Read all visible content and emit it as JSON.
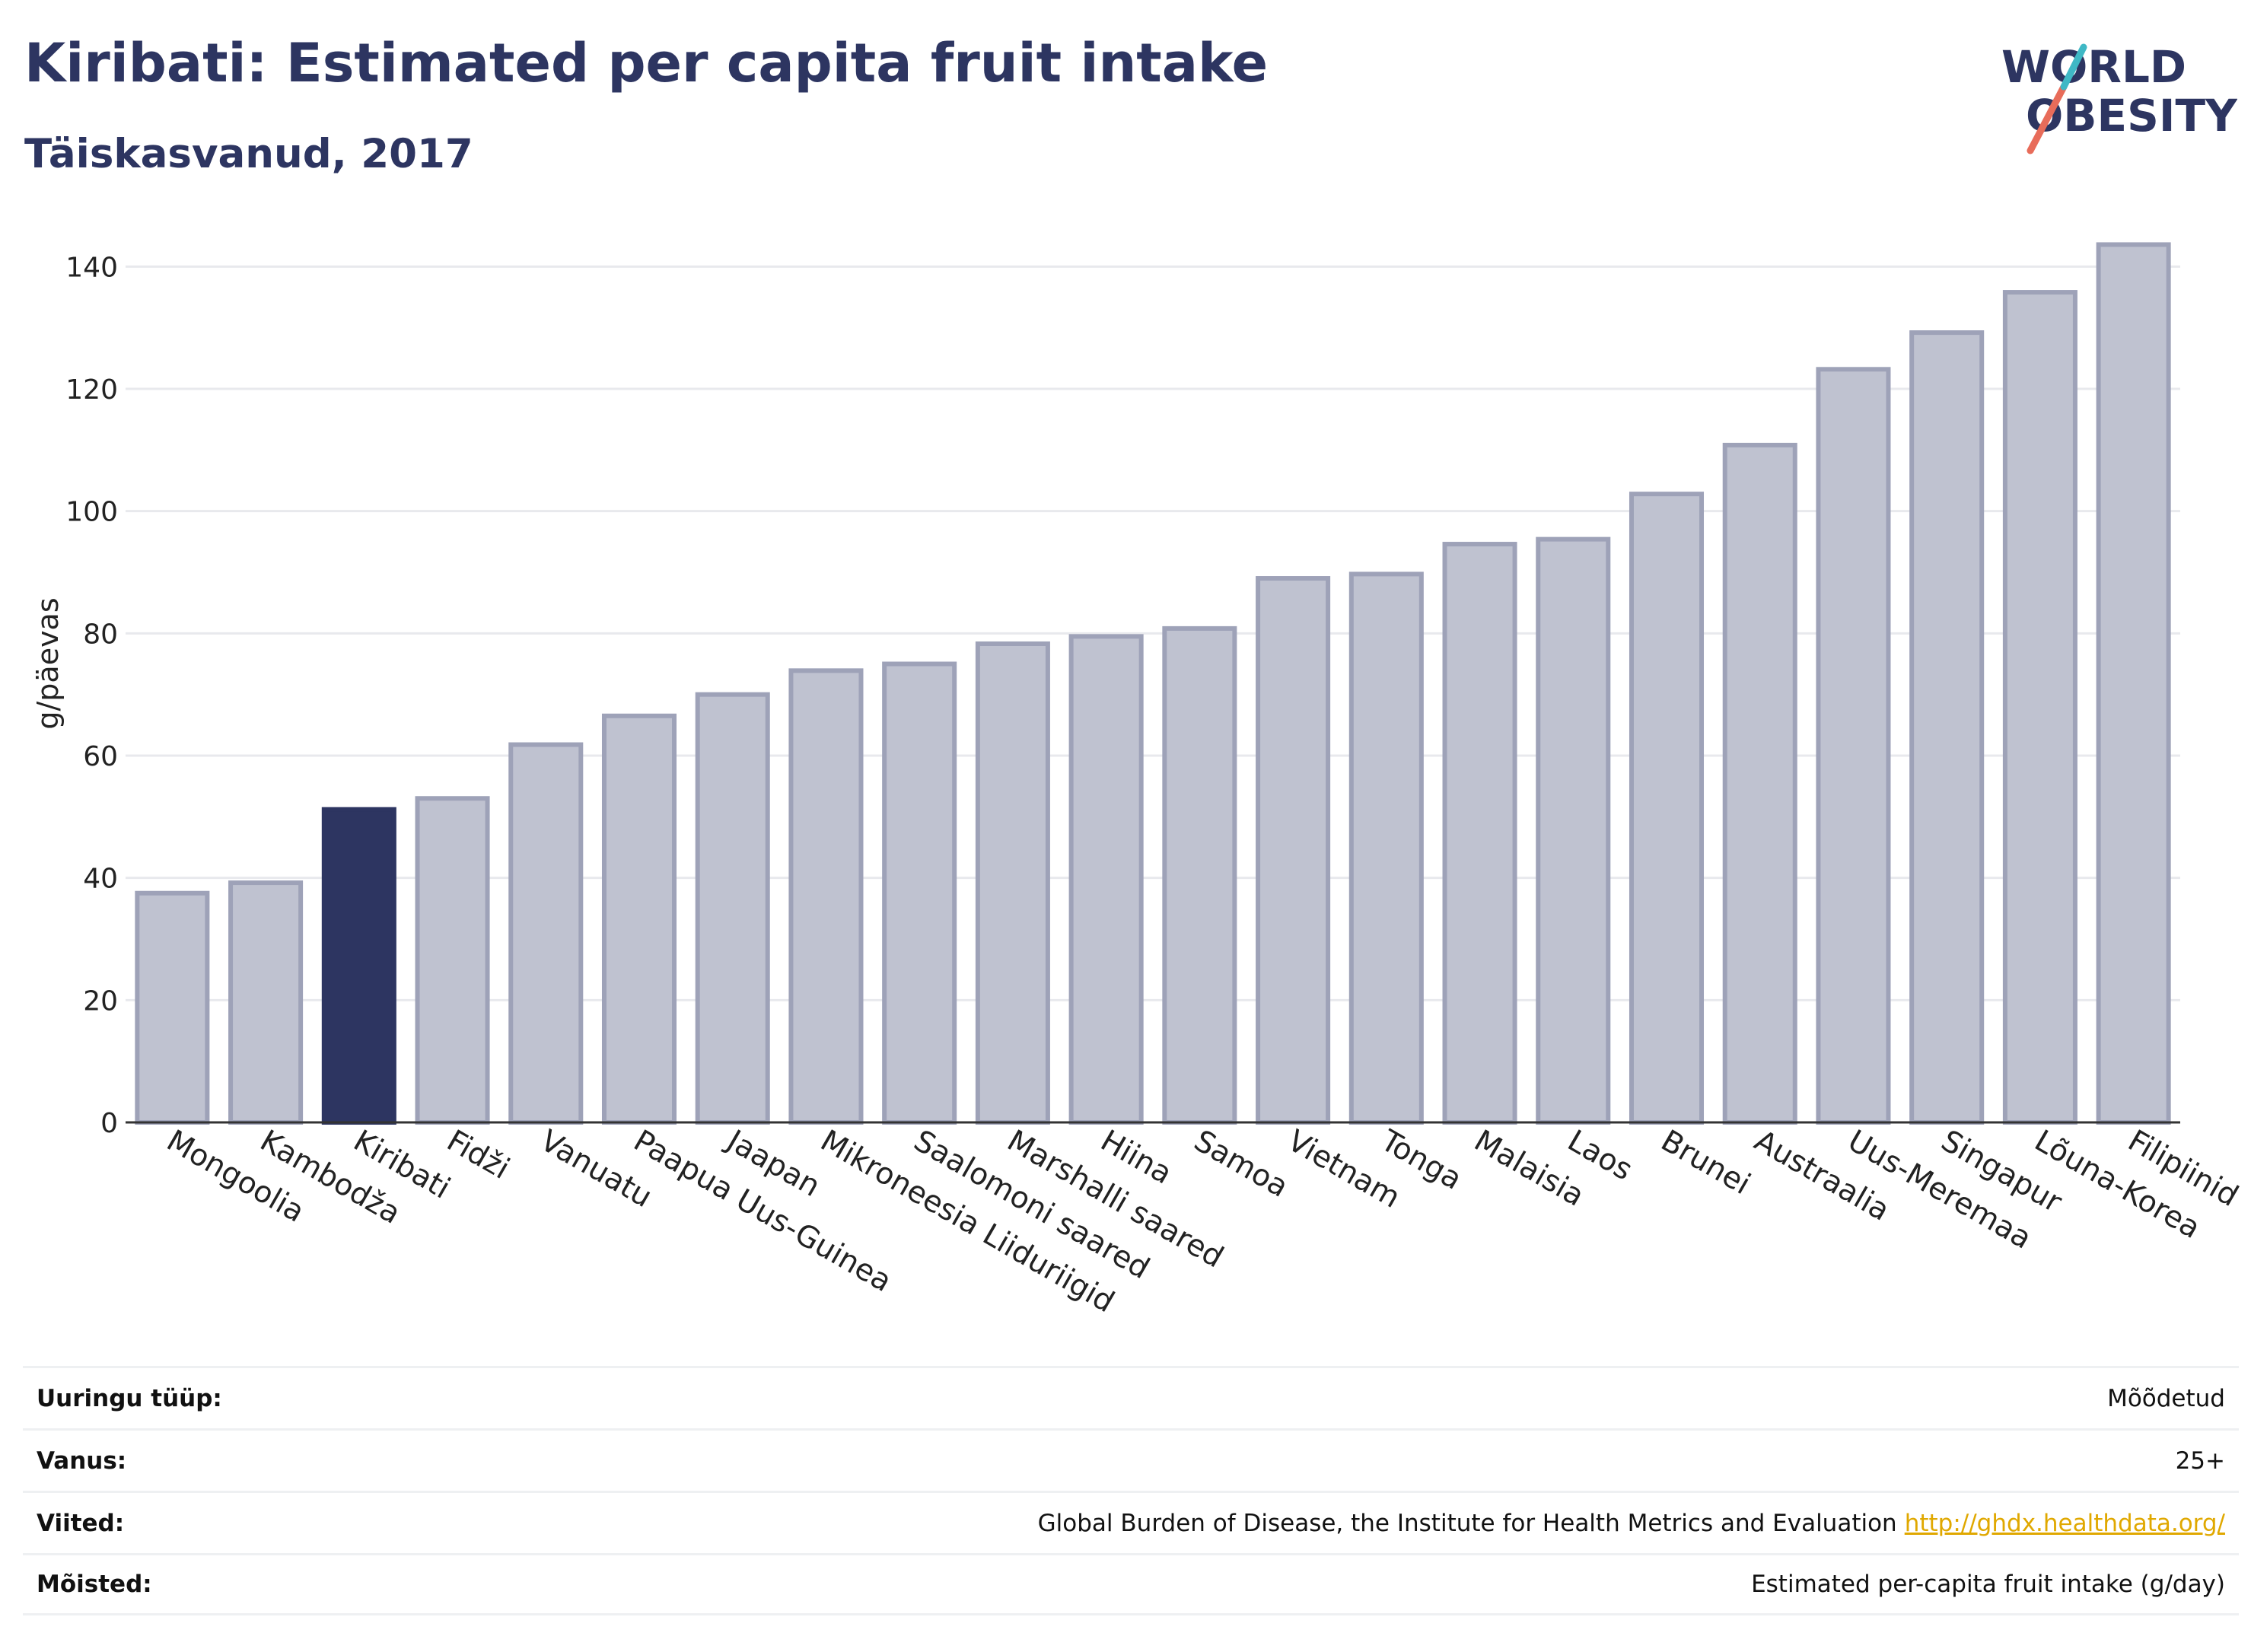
{
  "header": {
    "title": "Kiribati: Estimated per capita fruit intake",
    "subtitle": "Täiskasvanud, 2017"
  },
  "logo": {
    "line1": "WORLD",
    "line2": "OBESITY",
    "accent_teal": "#3fb8c5",
    "accent_coral": "#e86c5a"
  },
  "colors": {
    "highlight": "#2d3561",
    "bar_fill": "#bfc2d0",
    "bar_stroke": "#9ea2b8",
    "grid": "#e8e9ed"
  },
  "chart_data": {
    "type": "bar",
    "title": "Kiribati: Estimated per capita fruit intake",
    "subtitle": "Täiskasvanud, 2017",
    "xlabel": "",
    "ylabel": "g/päevas",
    "ylim": [
      0,
      150
    ],
    "yticks": [
      0,
      20,
      40,
      60,
      80,
      100,
      120,
      140
    ],
    "grid": true,
    "highlight": "Kiribati",
    "categories": [
      "Mongoolia",
      "Kambodža",
      "Kiribati",
      "Fidži",
      "Vanuatu",
      "Paapua Uus-Guinea",
      "Jaapan",
      "Mikroneesia Liiduriigid",
      "Saalomoni saared",
      "Marshalli saared",
      "Hiina",
      "Samoa",
      "Vietnam",
      "Tonga",
      "Malaisia",
      "Laos",
      "Brunei",
      "Austraalia",
      "Uus-Meremaa",
      "Singapur",
      "Lõuna-Korea",
      "Filipiinid"
    ],
    "values": [
      37.5,
      39.2,
      51.2,
      53.0,
      61.8,
      66.5,
      70.0,
      73.9,
      75.0,
      78.3,
      79.5,
      80.8,
      89.0,
      89.7,
      94.6,
      95.4,
      102.8,
      110.8,
      123.2,
      129.2,
      135.8,
      143.6
    ]
  },
  "meta": {
    "rows": [
      {
        "label": "Uuringu tüüp:",
        "value": "Mõõdetud"
      },
      {
        "label": "Vanus:",
        "value": "25+"
      },
      {
        "label": "Viited:",
        "value": "Global Burden of Disease, the Institute for Health Metrics and Evaluation",
        "link": "http://ghdx.healthdata.org/"
      },
      {
        "label": "Mõisted:",
        "value": "Estimated per-capita fruit intake (g/day)"
      }
    ]
  }
}
